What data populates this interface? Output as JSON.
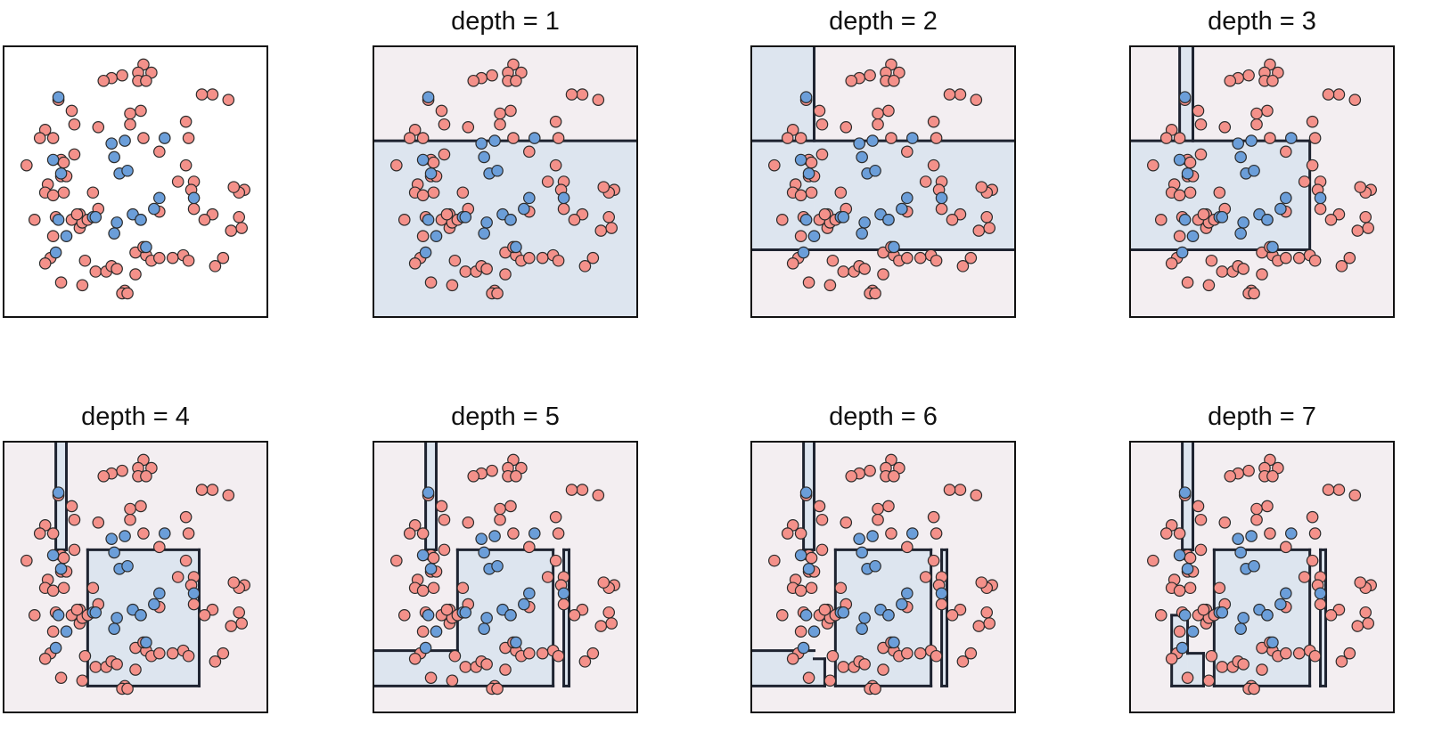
{
  "chart_data": {
    "type": "scatter",
    "xlim": [
      0,
      10
    ],
    "ylim": [
      0,
      10
    ],
    "grid": false,
    "legend": "none",
    "colors": {
      "class_a_fill": "#f4918a",
      "class_b_fill": "#6b9ed9",
      "point_stroke": "#2b2b2b",
      "region_a": "#f3eef1",
      "region_b": "#dde5ef",
      "boundary": "#1e2330",
      "frame": "#111111"
    },
    "points": [
      [
        5.3,
        9.3
      ],
      [
        5.1,
        9.0
      ],
      [
        5.6,
        9.0
      ],
      [
        5.1,
        8.7
      ],
      [
        5.4,
        8.7
      ],
      [
        4.5,
        8.9
      ],
      [
        4.1,
        8.8
      ],
      [
        3.8,
        8.7
      ],
      [
        2.1,
        8.0
      ],
      [
        2.6,
        7.6
      ],
      [
        2.7,
        7.1
      ],
      [
        1.9,
        6.6
      ],
      [
        1.6,
        6.9
      ],
      [
        1.4,
        6.6
      ],
      [
        2.2,
        5.8
      ],
      [
        2.2,
        5.2
      ],
      [
        1.7,
        4.9
      ],
      [
        1.6,
        4.6
      ],
      [
        2.3,
        4.6
      ],
      [
        0.9,
        5.6
      ],
      [
        1.2,
        3.6
      ],
      [
        2.0,
        3.7
      ],
      [
        2.6,
        3.6
      ],
      [
        2.9,
        3.3
      ],
      [
        1.9,
        3.0
      ],
      [
        1.8,
        2.2
      ],
      [
        1.6,
        2.0
      ],
      [
        2.2,
        1.3
      ],
      [
        3.0,
        1.2
      ],
      [
        3.5,
        1.7
      ],
      [
        3.9,
        1.7
      ],
      [
        4.1,
        1.9
      ],
      [
        4.3,
        1.8
      ],
      [
        4.6,
        1.0
      ],
      [
        4.5,
        0.9
      ],
      [
        4.7,
        0.9
      ],
      [
        5.0,
        1.6
      ],
      [
        5.4,
        2.3
      ],
      [
        5.6,
        2.1
      ],
      [
        5.9,
        2.2
      ],
      [
        6.8,
        2.3
      ],
      [
        7.0,
        2.1
      ],
      [
        8.0,
        1.9
      ],
      [
        8.3,
        2.2
      ],
      [
        8.6,
        3.2
      ],
      [
        8.9,
        3.7
      ],
      [
        9.1,
        4.7
      ],
      [
        8.9,
        4.6
      ],
      [
        9.0,
        3.3
      ],
      [
        7.9,
        3.8
      ],
      [
        7.6,
        3.6
      ],
      [
        7.2,
        5.0
      ],
      [
        7.1,
        4.7
      ],
      [
        6.9,
        5.6
      ],
      [
        8.7,
        4.8
      ],
      [
        7.0,
        6.6
      ],
      [
        8.5,
        8.0
      ],
      [
        7.9,
        8.2
      ],
      [
        7.5,
        8.2
      ],
      [
        6.9,
        7.2
      ],
      [
        5.9,
        6.1
      ],
      [
        5.3,
        6.6
      ],
      [
        5.2,
        7.6
      ],
      [
        4.8,
        7.5
      ],
      [
        4.8,
        7.1
      ],
      [
        3.6,
        7.0
      ],
      [
        2.7,
        6.0
      ],
      [
        1.9,
        4.5
      ],
      [
        2.4,
        5.2
      ],
      [
        2.9,
        3.8
      ],
      [
        3.0,
        3.5
      ],
      [
        3.2,
        3.6
      ],
      [
        3.1,
        2.1
      ],
      [
        5.0,
        2.4
      ],
      [
        5.3,
        2.6
      ],
      [
        5.2,
        3.6
      ],
      [
        5.9,
        3.9
      ],
      [
        6.4,
        2.2
      ],
      [
        6.6,
        5.0
      ],
      [
        7.2,
        4.0
      ],
      [
        3.6,
        4.0
      ],
      [
        3.4,
        4.6
      ],
      [
        2.3,
        5.7
      ],
      [
        2.8,
        3.8
      ],
      [
        2.1,
        8.1
      ],
      [
        1.9,
        5.8
      ],
      [
        4.1,
        6.4
      ],
      [
        4.2,
        5.9
      ],
      [
        4.6,
        6.5
      ],
      [
        4.4,
        5.3
      ],
      [
        4.7,
        5.4
      ],
      [
        6.1,
        6.6
      ],
      [
        7.2,
        4.4
      ],
      [
        5.7,
        4.0
      ],
      [
        5.9,
        4.4
      ],
      [
        4.9,
        3.8
      ],
      [
        5.2,
        3.6
      ],
      [
        4.3,
        3.5
      ],
      [
        4.2,
        3.1
      ],
      [
        5.4,
        2.6
      ],
      [
        3.4,
        3.7
      ],
      [
        2.4,
        3.0
      ],
      [
        2.1,
        3.6
      ],
      [
        2.0,
        2.4
      ],
      [
        2.2,
        5.3
      ],
      [
        3.5,
        3.7
      ]
    ],
    "n_class_a": 84,
    "panels": [
      {
        "title": ""
      },
      {
        "title": "depth = 1"
      },
      {
        "title": "depth = 2"
      },
      {
        "title": "depth = 3"
      },
      {
        "title": "depth = 4"
      },
      {
        "title": "depth = 5"
      },
      {
        "title": "depth = 6"
      },
      {
        "title": "depth = 7"
      }
    ]
  }
}
